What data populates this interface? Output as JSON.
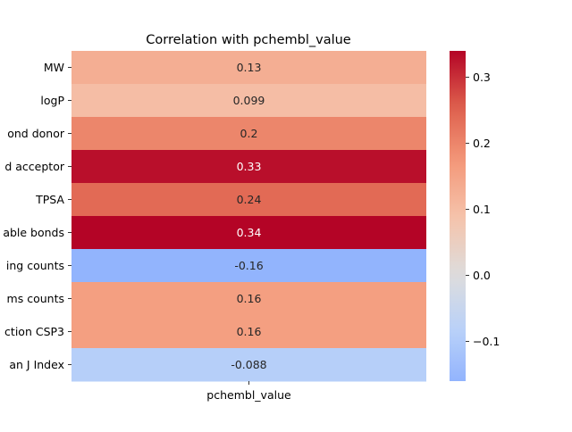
{
  "chart_data": {
    "type": "heatmap",
    "title": "Correlation with pchembl_value",
    "xlabel": "",
    "ylabel": "",
    "x_categories": [
      "pchembl_value"
    ],
    "y_categories": [
      "MW",
      "logP",
      "ond donor",
      "d acceptor",
      "TPSA",
      "able bonds",
      "ing counts",
      "ms counts",
      "ction CSP3",
      "an J Index"
    ],
    "values": [
      0.13,
      0.099,
      0.2,
      0.33,
      0.24,
      0.34,
      -0.16,
      0.16,
      0.16,
      -0.088
    ],
    "value_labels": [
      "0.13",
      "0.099",
      "0.2",
      "0.33",
      "0.24",
      "0.34",
      "-0.16",
      "0.16",
      "0.16",
      "-0.088"
    ],
    "colormap": "coolwarm",
    "center": 0,
    "color_range": [
      -0.16,
      0.34
    ],
    "colorbar_ticks": [
      -0.1,
      0.0,
      0.1,
      0.2,
      0.3
    ],
    "colorbar_tick_labels": [
      "−0.1",
      "0.0",
      "0.1",
      "0.2",
      "0.3"
    ],
    "grid": false,
    "legend": "colorbar-right"
  }
}
